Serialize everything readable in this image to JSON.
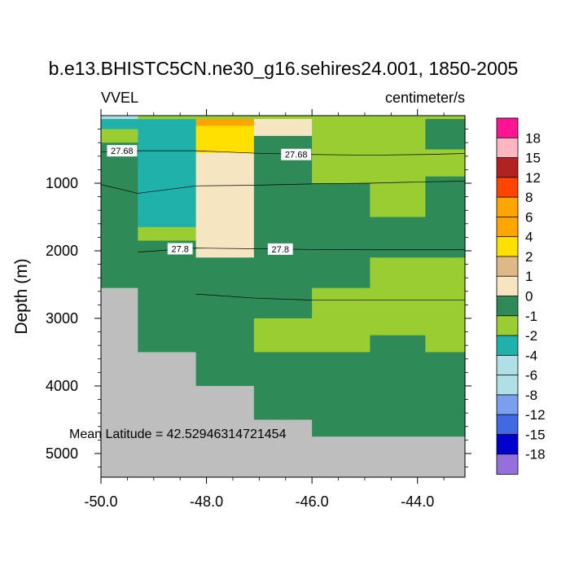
{
  "chart_data": {
    "type": "heatmap",
    "title": "b.e13.BHISTC5CN.ne30_g16.sehires24.001, 1850-2005",
    "variable_label": "VVEL",
    "units_label": "centimeter/s",
    "ylabel": "Depth (m)",
    "xlabel": "",
    "annotation": "Mean Latitude = 42.52946314721454",
    "xlim": [
      -50.0,
      -43.1
    ],
    "ylim": [
      5350,
      0
    ],
    "y_reversed": true,
    "x_ticks": [
      -50.0,
      -48.0,
      -46.0,
      -44.0
    ],
    "x_tick_labels": [
      "-50.0",
      "-48.0",
      "-46.0",
      "-44.0"
    ],
    "y_ticks": [
      1000,
      2000,
      3000,
      4000,
      5000
    ],
    "y_tick_labels": [
      "1000",
      "2000",
      "3000",
      "4000",
      "5000"
    ],
    "legend_placement": "right",
    "colorbar": {
      "labels": [
        "18",
        "15",
        "12",
        "8",
        "6",
        "4",
        "2",
        "1",
        "0",
        "-1",
        "-2",
        "-4",
        "-6",
        "-8",
        "-12",
        "-15",
        "-18"
      ],
      "colors": [
        "#ff1493",
        "#ffb6c1",
        "#b22222",
        "#ff4500",
        "#ffa500",
        "#ffa500",
        "#ffe000",
        "#deb887",
        "#f5e6c1",
        "#2e8b57",
        "#9acd32",
        "#20b2aa",
        "#b0e0e6",
        "#b0e0e6",
        "#7b9eee",
        "#4169e1",
        "#0000cd",
        "#9370db"
      ]
    },
    "land_color": "#bebebe",
    "cells": [
      {
        "x0": -50.0,
        "x1": -49.3,
        "y0": 0,
        "y1": 50,
        "v": "-4"
      },
      {
        "x0": -50.0,
        "x1": -49.3,
        "y0": 50,
        "y1": 200,
        "v": "-2"
      },
      {
        "x0": -50.0,
        "x1": -49.3,
        "y0": 200,
        "y1": 400,
        "v": "-1"
      },
      {
        "x0": -50.0,
        "x1": -49.3,
        "y0": 400,
        "y1": 2550,
        "v": "0"
      },
      {
        "x0": -50.0,
        "x1": -49.3,
        "y0": 2550,
        "y1": 5350,
        "v": "land"
      },
      {
        "x0": -49.3,
        "x1": -48.2,
        "y0": 0,
        "y1": 50,
        "v": "-1"
      },
      {
        "x0": -49.3,
        "x1": -48.2,
        "y0": 50,
        "y1": 1650,
        "v": "-2"
      },
      {
        "x0": -49.3,
        "x1": -48.2,
        "y0": 1650,
        "y1": 1850,
        "v": "-1"
      },
      {
        "x0": -49.3,
        "x1": -48.2,
        "y0": 1850,
        "y1": 3500,
        "v": "0"
      },
      {
        "x0": -49.3,
        "x1": -48.2,
        "y0": 3500,
        "y1": 5350,
        "v": "land"
      },
      {
        "x0": -48.2,
        "x1": -47.1,
        "y0": 0,
        "y1": 50,
        "v": "-1"
      },
      {
        "x0": -48.2,
        "x1": -47.1,
        "y0": 50,
        "y1": 150,
        "v": "6"
      },
      {
        "x0": -48.2,
        "x1": -47.1,
        "y0": 150,
        "y1": 550,
        "v": "4"
      },
      {
        "x0": -48.2,
        "x1": -47.1,
        "y0": 550,
        "y1": 2100,
        "v": "1"
      },
      {
        "x0": -48.2,
        "x1": -47.1,
        "y0": 2100,
        "y1": 4000,
        "v": "0"
      },
      {
        "x0": -48.2,
        "x1": -47.1,
        "y0": 4000,
        "y1": 5350,
        "v": "land"
      },
      {
        "x0": -47.1,
        "x1": -46.0,
        "y0": 0,
        "y1": 50,
        "v": "-1"
      },
      {
        "x0": -47.1,
        "x1": -46.0,
        "y0": 50,
        "y1": 300,
        "v": "1"
      },
      {
        "x0": -47.1,
        "x1": -46.0,
        "y0": 300,
        "y1": 3000,
        "v": "0"
      },
      {
        "x0": -47.1,
        "x1": -46.0,
        "y0": 3000,
        "y1": 3500,
        "v": "-1"
      },
      {
        "x0": -47.1,
        "x1": -46.0,
        "y0": 3500,
        "y1": 4500,
        "v": "0"
      },
      {
        "x0": -47.1,
        "x1": -46.0,
        "y0": 4500,
        "y1": 5350,
        "v": "land"
      },
      {
        "x0": -46.0,
        "x1": -44.9,
        "y0": 0,
        "y1": 1000,
        "v": "-1"
      },
      {
        "x0": -46.0,
        "x1": -44.9,
        "y0": 1000,
        "y1": 2550,
        "v": "0"
      },
      {
        "x0": -46.0,
        "x1": -44.9,
        "y0": 2550,
        "y1": 3500,
        "v": "-1"
      },
      {
        "x0": -46.0,
        "x1": -44.9,
        "y0": 3500,
        "y1": 4750,
        "v": "0"
      },
      {
        "x0": -46.0,
        "x1": -44.9,
        "y0": 4750,
        "y1": 5350,
        "v": "land"
      },
      {
        "x0": -44.9,
        "x1": -43.85,
        "y0": 0,
        "y1": 1500,
        "v": "-1"
      },
      {
        "x0": -44.9,
        "x1": -43.85,
        "y0": 1500,
        "y1": 2100,
        "v": "0"
      },
      {
        "x0": -44.9,
        "x1": -43.85,
        "y0": 2100,
        "y1": 3250,
        "v": "-1"
      },
      {
        "x0": -44.9,
        "x1": -43.85,
        "y0": 3250,
        "y1": 4750,
        "v": "0"
      },
      {
        "x0": -44.9,
        "x1": -43.85,
        "y0": 4750,
        "y1": 5350,
        "v": "land"
      },
      {
        "x0": -43.85,
        "x1": -43.1,
        "y0": 0,
        "y1": 50,
        "v": "-1"
      },
      {
        "x0": -43.85,
        "x1": -43.1,
        "y0": 50,
        "y1": 500,
        "v": "0"
      },
      {
        "x0": -43.85,
        "x1": -43.1,
        "y0": 500,
        "y1": 900,
        "v": "-1"
      },
      {
        "x0": -43.85,
        "x1": -43.1,
        "y0": 900,
        "y1": 2100,
        "v": "0"
      },
      {
        "x0": -43.85,
        "x1": -43.1,
        "y0": 2100,
        "y1": 3500,
        "v": "-1"
      },
      {
        "x0": -43.85,
        "x1": -43.1,
        "y0": 3500,
        "y1": 4750,
        "v": "0"
      },
      {
        "x0": -43.85,
        "x1": -43.1,
        "y0": 4750,
        "y1": 5350,
        "v": "land"
      }
    ],
    "contours": [
      {
        "level": "27.68",
        "points": [
          [
            -50.0,
            540
          ],
          [
            -49.3,
            520
          ],
          [
            -48.2,
            520
          ],
          [
            -47.1,
            555
          ],
          [
            -46.0,
            575
          ],
          [
            -44.9,
            585
          ],
          [
            -43.85,
            575
          ],
          [
            -43.1,
            560
          ]
        ],
        "labels": [
          [
            -49.6,
            520
          ],
          [
            -46.3,
            575
          ]
        ]
      },
      {
        "level": "",
        "points": [
          [
            -50.0,
            1020
          ],
          [
            -49.3,
            1150
          ],
          [
            -48.2,
            1040
          ],
          [
            -47.1,
            1030
          ],
          [
            -46.0,
            1010
          ],
          [
            -44.9,
            1000
          ],
          [
            -43.85,
            980
          ],
          [
            -43.1,
            970
          ]
        ],
        "labels": []
      },
      {
        "level": "27.8",
        "points": [
          [
            -49.3,
            2020
          ],
          [
            -48.2,
            1960
          ],
          [
            -47.1,
            1970
          ],
          [
            -46.0,
            1980
          ],
          [
            -44.9,
            1985
          ],
          [
            -43.85,
            1985
          ],
          [
            -43.1,
            1985
          ]
        ],
        "labels": [
          [
            -48.5,
            1970
          ],
          [
            -46.6,
            1975
          ]
        ]
      },
      {
        "level": "",
        "points": [
          [
            -48.2,
            2640
          ],
          [
            -47.1,
            2700
          ],
          [
            -46.0,
            2730
          ],
          [
            -44.9,
            2730
          ],
          [
            -43.85,
            2730
          ],
          [
            -43.1,
            2730
          ]
        ],
        "labels": []
      }
    ]
  }
}
